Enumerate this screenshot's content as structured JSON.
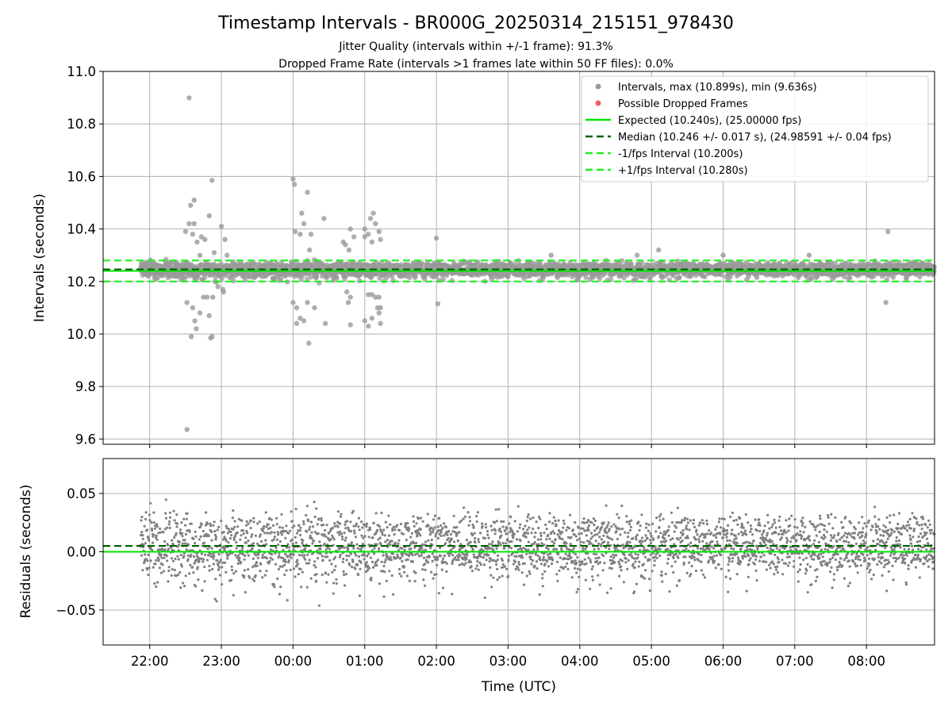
{
  "chart_data": {
    "title": "Timestamp Intervals - BR000G_20250314_215151_978430",
    "subtitle_1": "Jitter Quality (intervals within +/-1 frame): 91.3%",
    "subtitle_2": "Dropped Frame Rate (intervals >1 frames late within 50 FF files): 0.0%",
    "xlabel": "Time (UTC)",
    "x_ticks": [
      "22:00",
      "23:00",
      "00:00",
      "01:00",
      "02:00",
      "03:00",
      "04:00",
      "05:00",
      "06:00",
      "07:00",
      "08:00"
    ],
    "x_range_hours_since_2200": [
      -0.65,
      10.95
    ],
    "grid": true,
    "legend_placement": "top-right",
    "top": {
      "type": "scatter",
      "ylabel": "Intervals (seconds)",
      "ylim": [
        9.58,
        11.0
      ],
      "y_ticks": [
        "11.0",
        "10.8",
        "10.6",
        "10.4",
        "10.2",
        "10.0",
        "9.8",
        "9.6"
      ],
      "y_tick_values": [
        11.0,
        10.8,
        10.6,
        10.4,
        10.2,
        10.0,
        9.8,
        9.6
      ],
      "expected": 10.24,
      "median": 10.246,
      "lower": 10.2,
      "upper": 10.28,
      "max": 10.899,
      "min": 9.636,
      "outliers": [
        [
          0.55,
          10.899
        ],
        [
          0.52,
          9.636
        ],
        [
          0.87,
          10.585
        ],
        [
          0.62,
          10.51
        ],
        [
          0.57,
          10.49
        ],
        [
          0.83,
          10.45
        ],
        [
          0.62,
          10.42
        ],
        [
          0.55,
          10.42
        ],
        [
          1.0,
          10.41
        ],
        [
          0.5,
          10.39
        ],
        [
          0.6,
          10.38
        ],
        [
          0.72,
          10.37
        ],
        [
          1.05,
          10.36
        ],
        [
          0.77,
          10.36
        ],
        [
          0.66,
          10.35
        ],
        [
          0.9,
          10.31
        ],
        [
          0.7,
          10.3
        ],
        [
          1.08,
          10.3
        ],
        [
          0.52,
          10.12
        ],
        [
          0.6,
          10.1
        ],
        [
          0.7,
          10.08
        ],
        [
          0.83,
          10.07
        ],
        [
          0.63,
          10.05
        ],
        [
          0.65,
          10.02
        ],
        [
          0.58,
          9.99
        ],
        [
          0.85,
          9.985
        ],
        [
          0.87,
          9.99
        ],
        [
          0.95,
          10.18
        ],
        [
          1.02,
          10.17
        ],
        [
          0.75,
          10.14
        ],
        [
          0.8,
          10.14
        ],
        [
          0.88,
          10.14
        ],
        [
          1.03,
          10.16
        ],
        [
          2.0,
          10.59
        ],
        [
          2.02,
          10.57
        ],
        [
          2.2,
          10.54
        ],
        [
          2.12,
          10.46
        ],
        [
          2.15,
          10.42
        ],
        [
          2.25,
          10.38
        ],
        [
          2.03,
          10.39
        ],
        [
          2.1,
          10.38
        ],
        [
          2.43,
          10.44
        ],
        [
          2.23,
          10.32
        ],
        [
          2.0,
          10.12
        ],
        [
          2.05,
          10.1
        ],
        [
          2.2,
          10.12
        ],
        [
          2.1,
          10.06
        ],
        [
          2.05,
          10.04
        ],
        [
          2.15,
          10.05
        ],
        [
          2.22,
          9.965
        ],
        [
          2.45,
          10.04
        ],
        [
          2.3,
          10.1
        ],
        [
          2.7,
          10.35
        ],
        [
          2.73,
          10.34
        ],
        [
          2.78,
          10.32
        ],
        [
          2.8,
          10.4
        ],
        [
          2.85,
          10.37
        ],
        [
          2.75,
          10.16
        ],
        [
          2.8,
          10.14
        ],
        [
          2.77,
          10.12
        ],
        [
          2.8,
          10.035
        ],
        [
          3.0,
          10.37
        ],
        [
          3.0,
          10.4
        ],
        [
          3.05,
          10.38
        ],
        [
          3.08,
          10.44
        ],
        [
          3.12,
          10.46
        ],
        [
          3.15,
          10.42
        ],
        [
          3.1,
          10.35
        ],
        [
          3.2,
          10.39
        ],
        [
          3.22,
          10.36
        ],
        [
          3.05,
          10.15
        ],
        [
          3.1,
          10.15
        ],
        [
          3.15,
          10.14
        ],
        [
          3.18,
          10.1
        ],
        [
          3.2,
          10.08
        ],
        [
          3.22,
          10.1
        ],
        [
          3.1,
          10.06
        ],
        [
          3.0,
          10.05
        ],
        [
          3.05,
          10.03
        ],
        [
          3.22,
          10.04
        ],
        [
          3.2,
          10.14
        ],
        [
          4.0,
          10.365
        ],
        [
          4.02,
          10.115
        ],
        [
          10.3,
          10.39
        ],
        [
          10.27,
          10.12
        ],
        [
          7.1,
          10.32
        ],
        [
          6.8,
          10.3
        ],
        [
          5.6,
          10.3
        ],
        [
          8.0,
          10.3
        ],
        [
          9.2,
          10.3
        ]
      ]
    },
    "bottom": {
      "type": "scatter",
      "ylabel": "Residuals (seconds)",
      "ylim": [
        -0.08,
        0.08
      ],
      "y_ticks": [
        "0.05",
        "0.00",
        "−0.05"
      ],
      "y_tick_values": [
        0.05,
        0.0,
        -0.05
      ],
      "zero_line": 0.0,
      "median_offset": 0.005
    },
    "legend": [
      "Intervals, max (10.899s), min (9.636s)",
      "Possible Dropped Frames",
      "Expected (10.240s), (25.00000 fps)",
      "Median (10.246 +/- 0.017 s), (24.98591 +/- 0.04 fps)",
      "-1/fps Interval (10.200s)",
      "+1/fps Interval (10.280s)"
    ],
    "colors": {
      "points": "#808080",
      "points_top": "#9a9a9a",
      "dropped": "#f06060",
      "expected": "#00e600",
      "median": "#006400",
      "interval": "#22ee22",
      "grid": "#b0b0b0"
    }
  }
}
